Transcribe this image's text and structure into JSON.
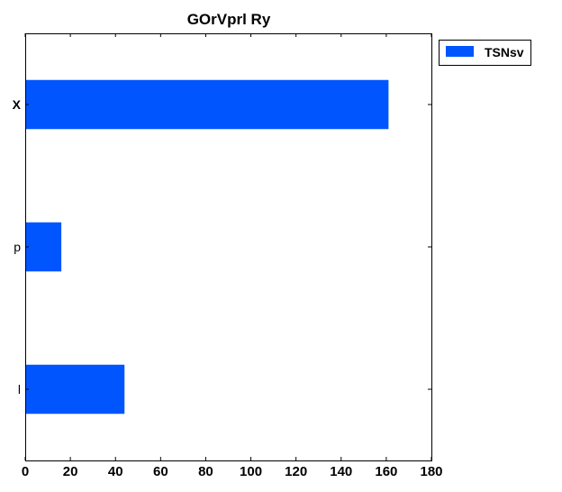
{
  "chart_data": {
    "type": "bar",
    "orientation": "horizontal",
    "title": "GOrVprl Ry",
    "xlabel": "",
    "ylabel": "",
    "categories": [
      "l",
      "p",
      "X"
    ],
    "category_label_weights": [
      "normal",
      "normal",
      "bold"
    ],
    "series": [
      {
        "name": "TSNsv",
        "values": [
          44,
          16,
          161
        ],
        "color": "#0055ff"
      }
    ],
    "xlim": [
      0,
      180
    ],
    "xticks": [
      0,
      20,
      40,
      60,
      80,
      100,
      120,
      140,
      160,
      180
    ],
    "grid": false,
    "legend_position": "outside-top-right"
  }
}
